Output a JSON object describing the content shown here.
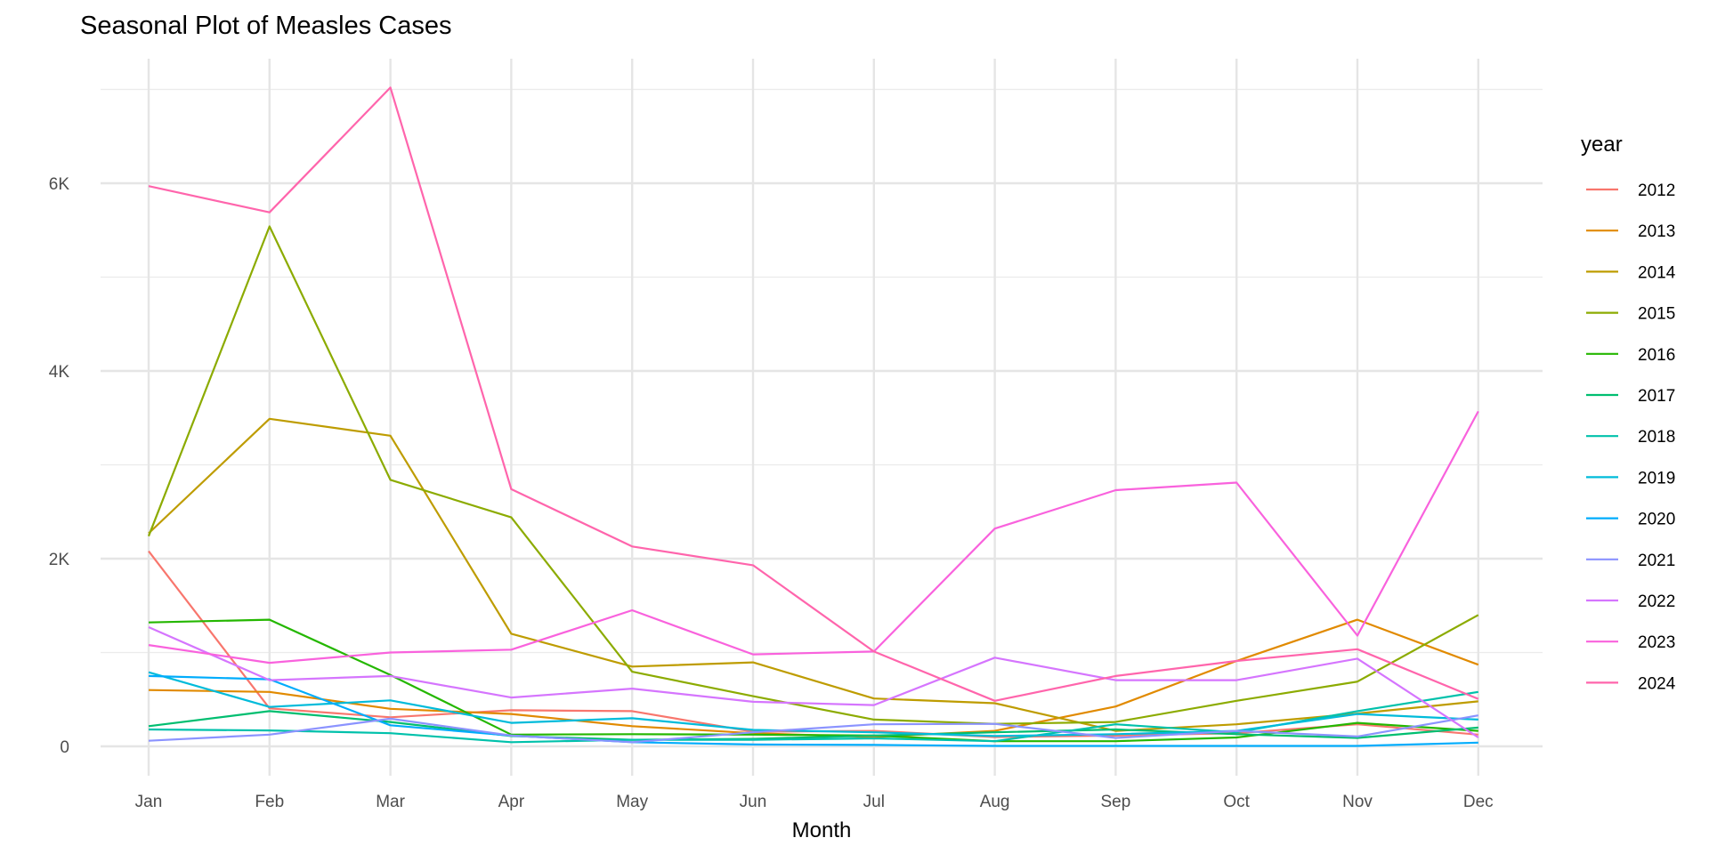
{
  "chart_data": {
    "type": "line",
    "title": "Seasonal Plot of Measles Cases",
    "xlabel": "Month",
    "ylabel": "",
    "categories": [
      "Jan",
      "Feb",
      "Mar",
      "Apr",
      "May",
      "Jun",
      "Jul",
      "Aug",
      "Sep",
      "Oct",
      "Nov",
      "Dec"
    ],
    "ylim": [
      0,
      7300
    ],
    "yticks": [
      0,
      2000,
      4000,
      6000
    ],
    "ytick_labels": [
      "0",
      "2K",
      "4K",
      "6K"
    ],
    "grid": true,
    "legend": {
      "title": "year",
      "placement": "right"
    },
    "series": [
      {
        "name": "2012",
        "color": "#F8766D",
        "values": [
          2080,
          405,
          310,
          385,
          375,
          155,
          165,
          100,
          115,
          140,
          235,
          125
        ]
      },
      {
        "name": "2013",
        "color": "#E18A00",
        "values": [
          600,
          580,
          400,
          345,
          215,
          140,
          100,
          165,
          425,
          910,
          1350,
          870
        ]
      },
      {
        "name": "2014",
        "color": "#BE9C00",
        "values": [
          2270,
          3490,
          3310,
          1200,
          850,
          895,
          510,
          460,
          165,
          235,
          350,
          480
        ]
      },
      {
        "name": "2015",
        "color": "#8CAB00",
        "values": [
          2240,
          5540,
          2840,
          2440,
          795,
          535,
          285,
          240,
          260,
          485,
          690,
          1400
        ]
      },
      {
        "name": "2016",
        "color": "#24B700",
        "values": [
          1320,
          1350,
          760,
          125,
          130,
          125,
          115,
          55,
          55,
          95,
          250,
          165
        ]
      },
      {
        "name": "2017",
        "color": "#00BE70",
        "values": [
          215,
          375,
          260,
          110,
          70,
          80,
          115,
          150,
          180,
          130,
          90,
          200
        ]
      },
      {
        "name": "2018",
        "color": "#00C1AB",
        "values": [
          180,
          170,
          140,
          45,
          70,
          70,
          85,
          55,
          235,
          150,
          375,
          580
        ]
      },
      {
        "name": "2019",
        "color": "#00BBDA",
        "values": [
          790,
          420,
          490,
          250,
          300,
          175,
          150,
          110,
          130,
          165,
          345,
          285
        ]
      },
      {
        "name": "2020",
        "color": "#00ACFC",
        "values": [
          750,
          715,
          225,
          115,
          45,
          20,
          15,
          5,
          5,
          5,
          5,
          40
        ]
      },
      {
        "name": "2021",
        "color": "#8B93FF",
        "values": [
          60,
          125,
          295,
          115,
          45,
          150,
          235,
          240,
          90,
          165,
          105,
          330
        ]
      },
      {
        "name": "2022",
        "color": "#D575FE",
        "values": [
          1270,
          705,
          750,
          520,
          615,
          475,
          440,
          945,
          705,
          705,
          935,
          95
        ]
      },
      {
        "name": "2023",
        "color": "#F962DD",
        "values": [
          1080,
          890,
          1000,
          1030,
          1450,
          980,
          1010,
          2320,
          2730,
          2810,
          1180,
          3570
        ]
      },
      {
        "name": "2024",
        "color": "#FF65AC",
        "values": [
          5970,
          5690,
          7020,
          2740,
          2130,
          1930,
          1010,
          485,
          750,
          910,
          1035,
          505
        ]
      }
    ]
  }
}
